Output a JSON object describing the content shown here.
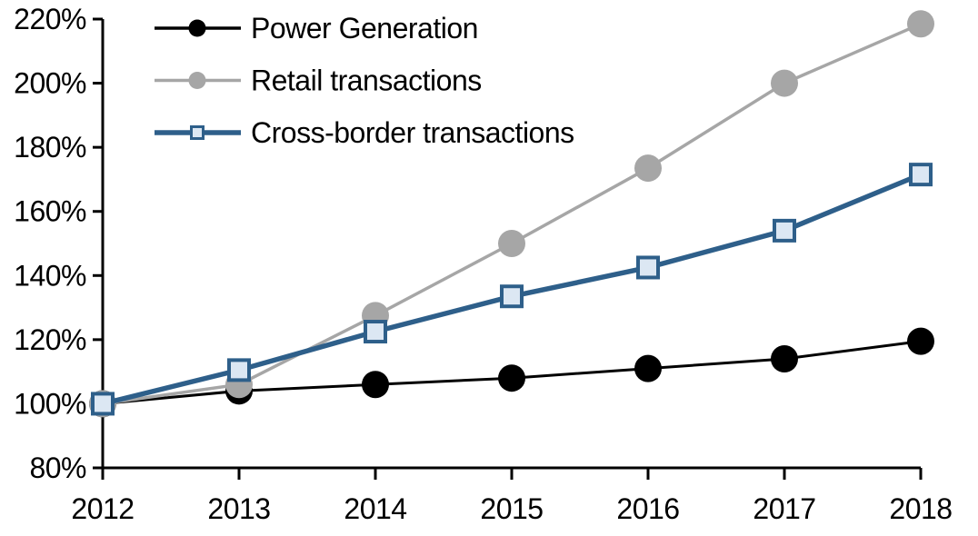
{
  "chart_data": {
    "type": "line",
    "title": "",
    "xlabel": "",
    "ylabel": "",
    "grid": false,
    "legend_position": "top-left-inside",
    "background": "#FFFFFF",
    "axis_color": "#000000",
    "x_categories": [
      "2012",
      "2013",
      "2014",
      "2015",
      "2016",
      "2017",
      "2018"
    ],
    "y_axis": {
      "min": 80,
      "max": 220,
      "step": 20,
      "suffix": "%"
    },
    "series": [
      {
        "name": "Power Generation",
        "values": [
          100,
          104,
          106,
          108,
          111,
          114,
          119.5
        ],
        "color": "#000000",
        "marker": "circle",
        "marker_fill": "#000000",
        "line_width": 3
      },
      {
        "name": "Retail transactions",
        "values": [
          100,
          106,
          127.5,
          150,
          173.5,
          200,
          218.5
        ],
        "color": "#A6A6A6",
        "marker": "circle",
        "marker_fill": "#A6A6A6",
        "line_width": 3.5
      },
      {
        "name": "Cross-border transactions",
        "values": [
          100,
          110.5,
          122.5,
          133.5,
          142.5,
          154,
          171.5
        ],
        "color": "#2E5F8A",
        "marker": "square",
        "marker_fill": "#DCE7F3",
        "line_width": 5.5
      }
    ]
  }
}
